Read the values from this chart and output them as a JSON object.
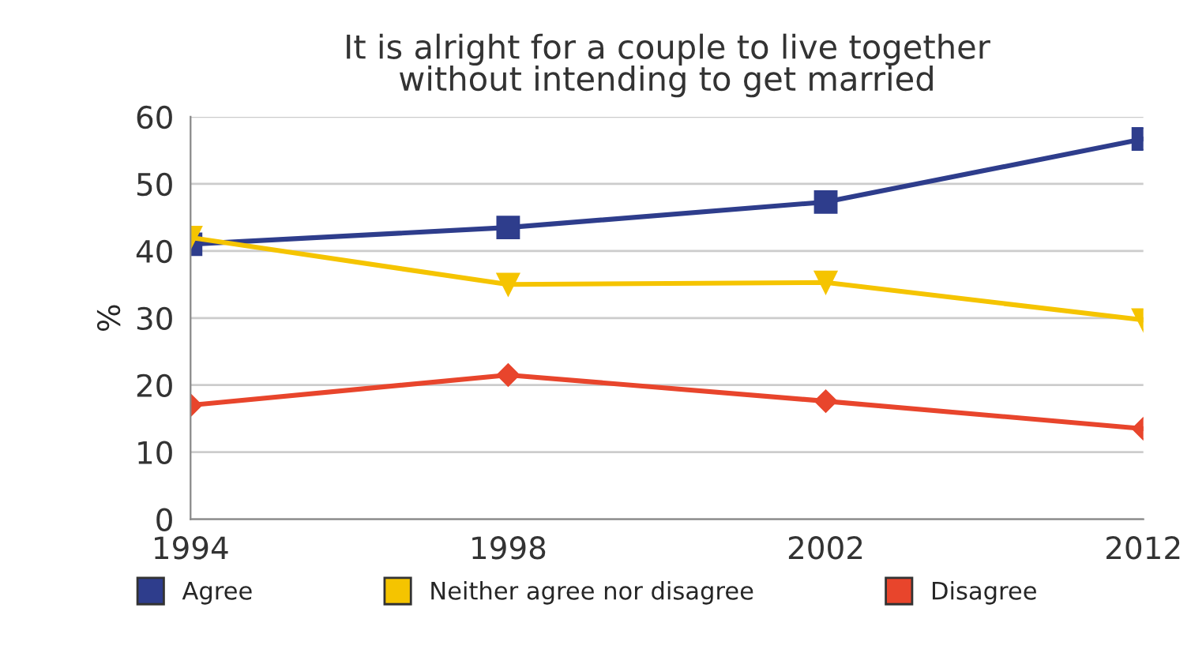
{
  "chart_data": {
    "type": "line",
    "title": "It is alright for a couple to live together\nwithout intending to get married",
    "ylabel": "%",
    "categories": [
      "1994",
      "1998",
      "2002",
      "2012"
    ],
    "series": [
      {
        "name": "Agree",
        "color": "#2e3d8c",
        "marker": "square",
        "values": [
          41,
          43.5,
          47.3,
          56.7
        ]
      },
      {
        "name": "Neither agree nor disagree",
        "color": "#f5c400",
        "marker": "triangle",
        "values": [
          42,
          35,
          35.3,
          29.7
        ]
      },
      {
        "name": "Disagree",
        "color": "#e8452c",
        "marker": "diamond",
        "values": [
          17,
          21.5,
          17.6,
          13.5
        ]
      }
    ],
    "ylim": [
      0,
      60
    ],
    "yticks": [
      0,
      10,
      20,
      30,
      40,
      50,
      60
    ],
    "grid": "y",
    "legend": "bottom"
  }
}
